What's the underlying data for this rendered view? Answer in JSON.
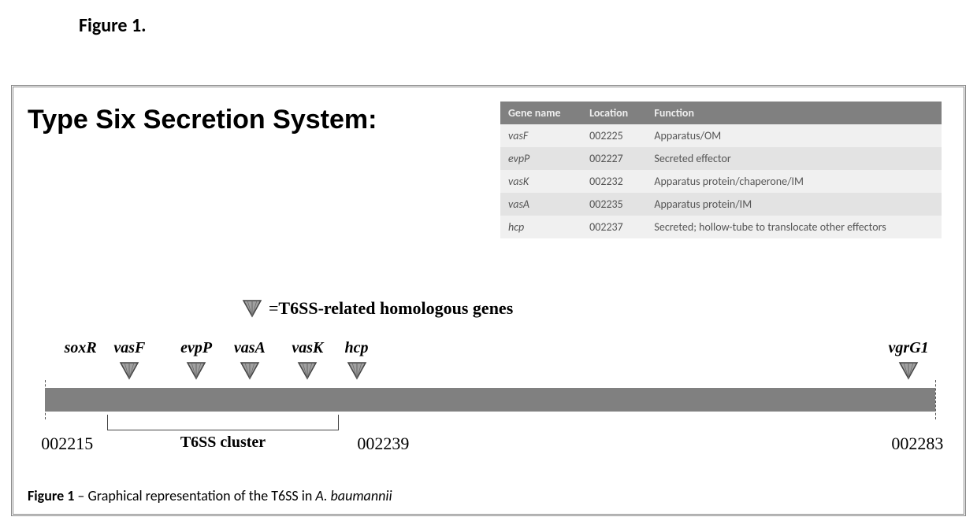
{
  "figure_label": "Figure 1.",
  "title": "Type Six Secretion System:",
  "table": {
    "headers": [
      "Gene name",
      "Location",
      "Function"
    ],
    "rows": [
      [
        "vasF",
        "002225",
        "Apparatus/OM"
      ],
      [
        "evpP",
        "002227",
        "Secreted effector"
      ],
      [
        "vasK",
        "002232",
        "Apparatus protein/chaperone/IM"
      ],
      [
        "vasA",
        "002235",
        "Apparatus protein/IM"
      ],
      [
        "hcp",
        "002237",
        "Secreted; hollow-tube to translocate other effectors"
      ]
    ]
  },
  "legend": {
    "prefix": " = ",
    "text": "T6SS-related homologous genes"
  },
  "diagram": {
    "bar_color": "#808080",
    "marker_fill": "#a0a0a0",
    "marker_stroke": "#444444",
    "genes": [
      {
        "name": "soxR",
        "pos_pct": 4.0,
        "marker": false
      },
      {
        "name": "vasF",
        "pos_pct": 9.5,
        "marker": true
      },
      {
        "name": "evpP",
        "pos_pct": 17.0,
        "marker": true
      },
      {
        "name": "vasA",
        "pos_pct": 23.0,
        "marker": true
      },
      {
        "name": "vasK",
        "pos_pct": 29.5,
        "marker": true
      },
      {
        "name": "hcp",
        "pos_pct": 35.0,
        "marker": true
      },
      {
        "name": "vgrG1",
        "pos_pct": 97.0,
        "marker": true
      }
    ],
    "ticks": [
      {
        "pos_pct": 0,
        "height": 50
      },
      {
        "pos_pct": 100,
        "height": 50
      }
    ],
    "coords": [
      {
        "label": "002215",
        "pos_pct": 2.5
      },
      {
        "label": "002239",
        "pos_pct": 38.0
      },
      {
        "label": "002283",
        "pos_pct": 98.0
      }
    ],
    "cluster": {
      "label": "T6SS cluster",
      "start_pct": 7.0,
      "end_pct": 33.0,
      "label_pos_pct": 20.0
    }
  },
  "caption": {
    "prefix": "Figure 1",
    "dash": " – ",
    "text": "Graphical representation of the T6SS in ",
    "italic": "A. baumannii"
  },
  "colors": {
    "background": "#ffffff",
    "text": "#000000",
    "table_header_bg": "#808080",
    "table_row_odd": "#f0f0f0",
    "table_row_even": "#e3e3e3"
  }
}
